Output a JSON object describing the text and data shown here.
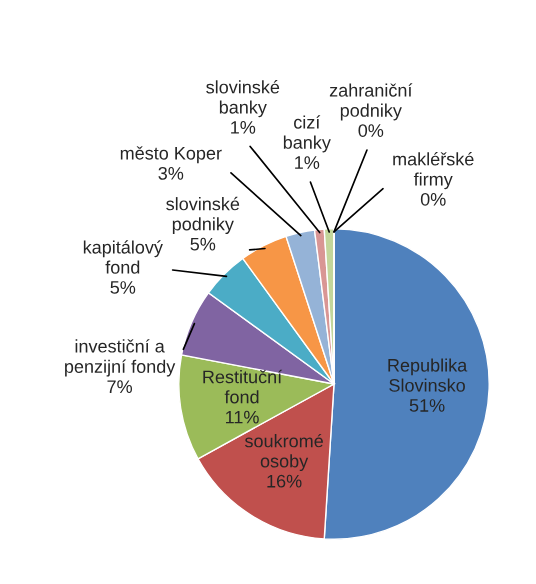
{
  "chart_data": {
    "type": "pie",
    "categories": [
      "Republika\nSlovinsko",
      "soukromé\nosoby",
      "Restituční\nfond",
      "investiční a\npenzijní fondy",
      "kapitálový\nfond",
      "slovinské\npodniky",
      "město Koper",
      "slovinské\nbanky",
      "cizí\nbanky",
      "zahraniční\npodniky",
      "makléřské\nfirmy"
    ],
    "values": [
      51,
      16,
      11,
      7,
      5,
      5,
      3,
      1,
      1,
      0,
      0
    ],
    "value_labels": [
      "51%",
      "16%",
      "11%",
      "7%",
      "5%",
      "5%",
      "3%",
      "1%",
      "1%",
      "0%",
      "0%"
    ],
    "colors": [
      "#4f81bd",
      "#c0504d",
      "#9bbb59",
      "#8064a2",
      "#4bacc6",
      "#f79646",
      "#95b3d7",
      "#d99694",
      "#c3d69b",
      "#b3a2c7",
      "#b3a2c7"
    ],
    "legend": false
  }
}
